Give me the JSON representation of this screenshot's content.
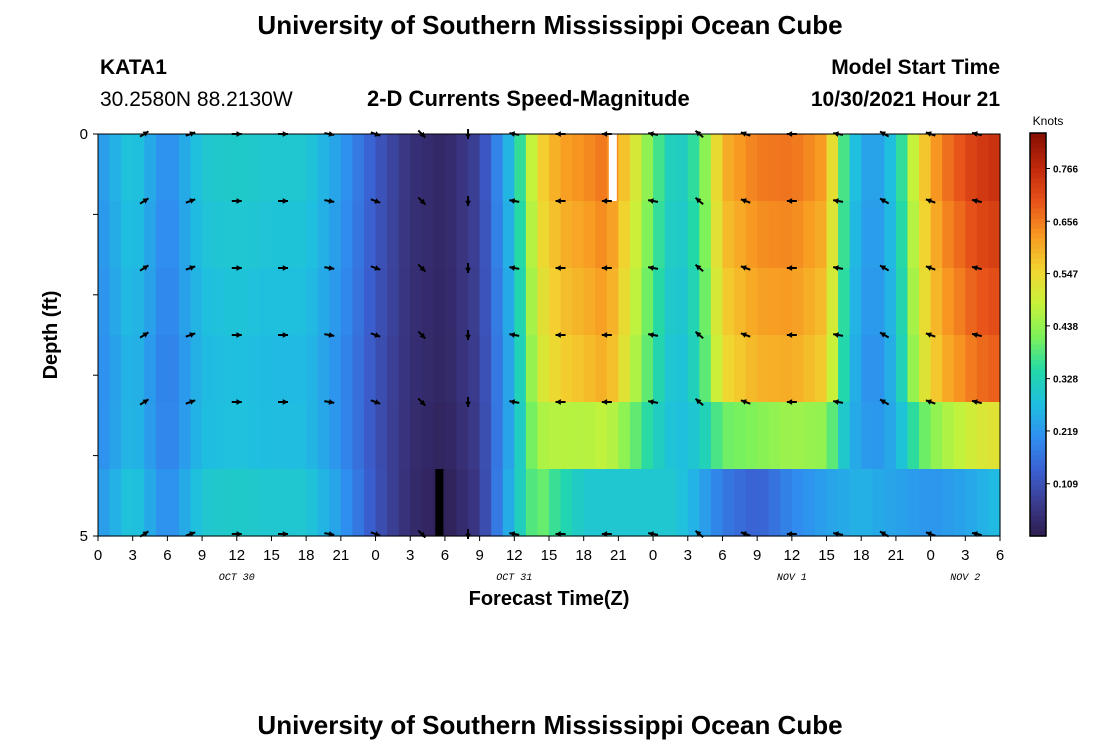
{
  "header": {
    "title": "University of Southern Mississippi Ocean Cube",
    "station": "KATA1",
    "coords": "30.2580N  88.2130W",
    "subtitle": "2-D Currents Speed-Magnitude",
    "model_start_label": "Model Start Time",
    "model_start_value": "10/30/2021 Hour 21"
  },
  "footer": {
    "title": "University of Southern Mississippi Ocean Cube"
  },
  "chart_data": {
    "type": "heatmap",
    "xlabel": "Forecast Time(Z)",
    "ylabel": "Depth (ft)",
    "ylim": [
      0,
      5
    ],
    "y_tick_labels": [
      "0",
      "5"
    ],
    "x_ticks": [
      "0",
      "3",
      "6",
      "9",
      "12",
      "15",
      "18",
      "21",
      "0",
      "3",
      "6",
      "9",
      "12",
      "15",
      "18",
      "21",
      "0",
      "3",
      "6",
      "9",
      "12",
      "15",
      "18",
      "21",
      "0",
      "3",
      "6"
    ],
    "date_labels": [
      "OCT 30",
      "OCT 31",
      "NOV 1",
      "NOV 2"
    ],
    "colorbar": {
      "unit": "Knots",
      "tick_values": [
        0.109,
        0.219,
        0.328,
        0.438,
        0.547,
        0.656,
        0.766
      ],
      "min": 0.0,
      "max": 0.84,
      "colors": [
        "#2d1a4a",
        "#3b3a8a",
        "#3b5fd0",
        "#2f8ef0",
        "#1fbfe0",
        "#22d8a8",
        "#7cf25a",
        "#c8f23a",
        "#f2d430",
        "#f89a22",
        "#e8541a",
        "#c22a0c",
        "#8a1004"
      ]
    },
    "depth_rows": 6,
    "time_step_hours": 1,
    "time_range_hours": [
      0,
      78
    ],
    "column_speed_profile_surface": [
      [
        0,
        0.22
      ],
      [
        3,
        0.3
      ],
      [
        6,
        0.2
      ],
      [
        9,
        0.3
      ],
      [
        12,
        0.31
      ],
      [
        15,
        0.3
      ],
      [
        18,
        0.3
      ],
      [
        21,
        0.23
      ],
      [
        24,
        0.13
      ],
      [
        27,
        0.05
      ],
      [
        30,
        0.03
      ],
      [
        33,
        0.09
      ],
      [
        36,
        0.3
      ],
      [
        38,
        0.55
      ],
      [
        40,
        0.62
      ],
      [
        42,
        0.64
      ],
      [
        44,
        0.67
      ],
      [
        46,
        0.55
      ],
      [
        48,
        0.4
      ],
      [
        50,
        0.3
      ],
      [
        52,
        0.38
      ],
      [
        54,
        0.6
      ],
      [
        57,
        0.66
      ],
      [
        60,
        0.67
      ],
      [
        63,
        0.62
      ],
      [
        65,
        0.3
      ],
      [
        67,
        0.22
      ],
      [
        69,
        0.3
      ],
      [
        71,
        0.55
      ],
      [
        73,
        0.66
      ],
      [
        76,
        0.74
      ],
      [
        78,
        0.76
      ]
    ],
    "bottom_row_speed_profile": [
      [
        0,
        0.22
      ],
      [
        3,
        0.3
      ],
      [
        6,
        0.2
      ],
      [
        9,
        0.3
      ],
      [
        12,
        0.31
      ],
      [
        15,
        0.3
      ],
      [
        18,
        0.3
      ],
      [
        21,
        0.23
      ],
      [
        24,
        0.12
      ],
      [
        27,
        0.04
      ],
      [
        30,
        0.01
      ],
      [
        33,
        0.07
      ],
      [
        36,
        0.29
      ],
      [
        38,
        0.42
      ],
      [
        40,
        0.35
      ],
      [
        42,
        0.3
      ],
      [
        46,
        0.3
      ],
      [
        50,
        0.3
      ],
      [
        52,
        0.25
      ],
      [
        54,
        0.18
      ],
      [
        57,
        0.14
      ],
      [
        60,
        0.2
      ],
      [
        63,
        0.24
      ],
      [
        66,
        0.26
      ],
      [
        69,
        0.24
      ],
      [
        72,
        0.22
      ],
      [
        75,
        0.24
      ],
      [
        78,
        0.28
      ]
    ],
    "arrows_every_hours": 4,
    "arrow_direction_profile_deg": [
      [
        0,
        -45
      ],
      [
        8,
        -20
      ],
      [
        12,
        0
      ],
      [
        16,
        0
      ],
      [
        20,
        10
      ],
      [
        24,
        20
      ],
      [
        28,
        45
      ],
      [
        32,
        90
      ],
      [
        36,
        -170
      ],
      [
        40,
        -180
      ],
      [
        44,
        -180
      ],
      [
        48,
        -170
      ],
      [
        52,
        -140
      ],
      [
        56,
        -160
      ],
      [
        60,
        -180
      ],
      [
        64,
        -170
      ],
      [
        68,
        -150
      ],
      [
        72,
        -160
      ],
      [
        78,
        -170
      ]
    ],
    "missing_marks": [
      {
        "time_hours": 44,
        "depth_row": 0,
        "color": "#ffffff"
      },
      {
        "time_hours": 29,
        "depth_row": 5,
        "color": "#000000"
      }
    ]
  }
}
